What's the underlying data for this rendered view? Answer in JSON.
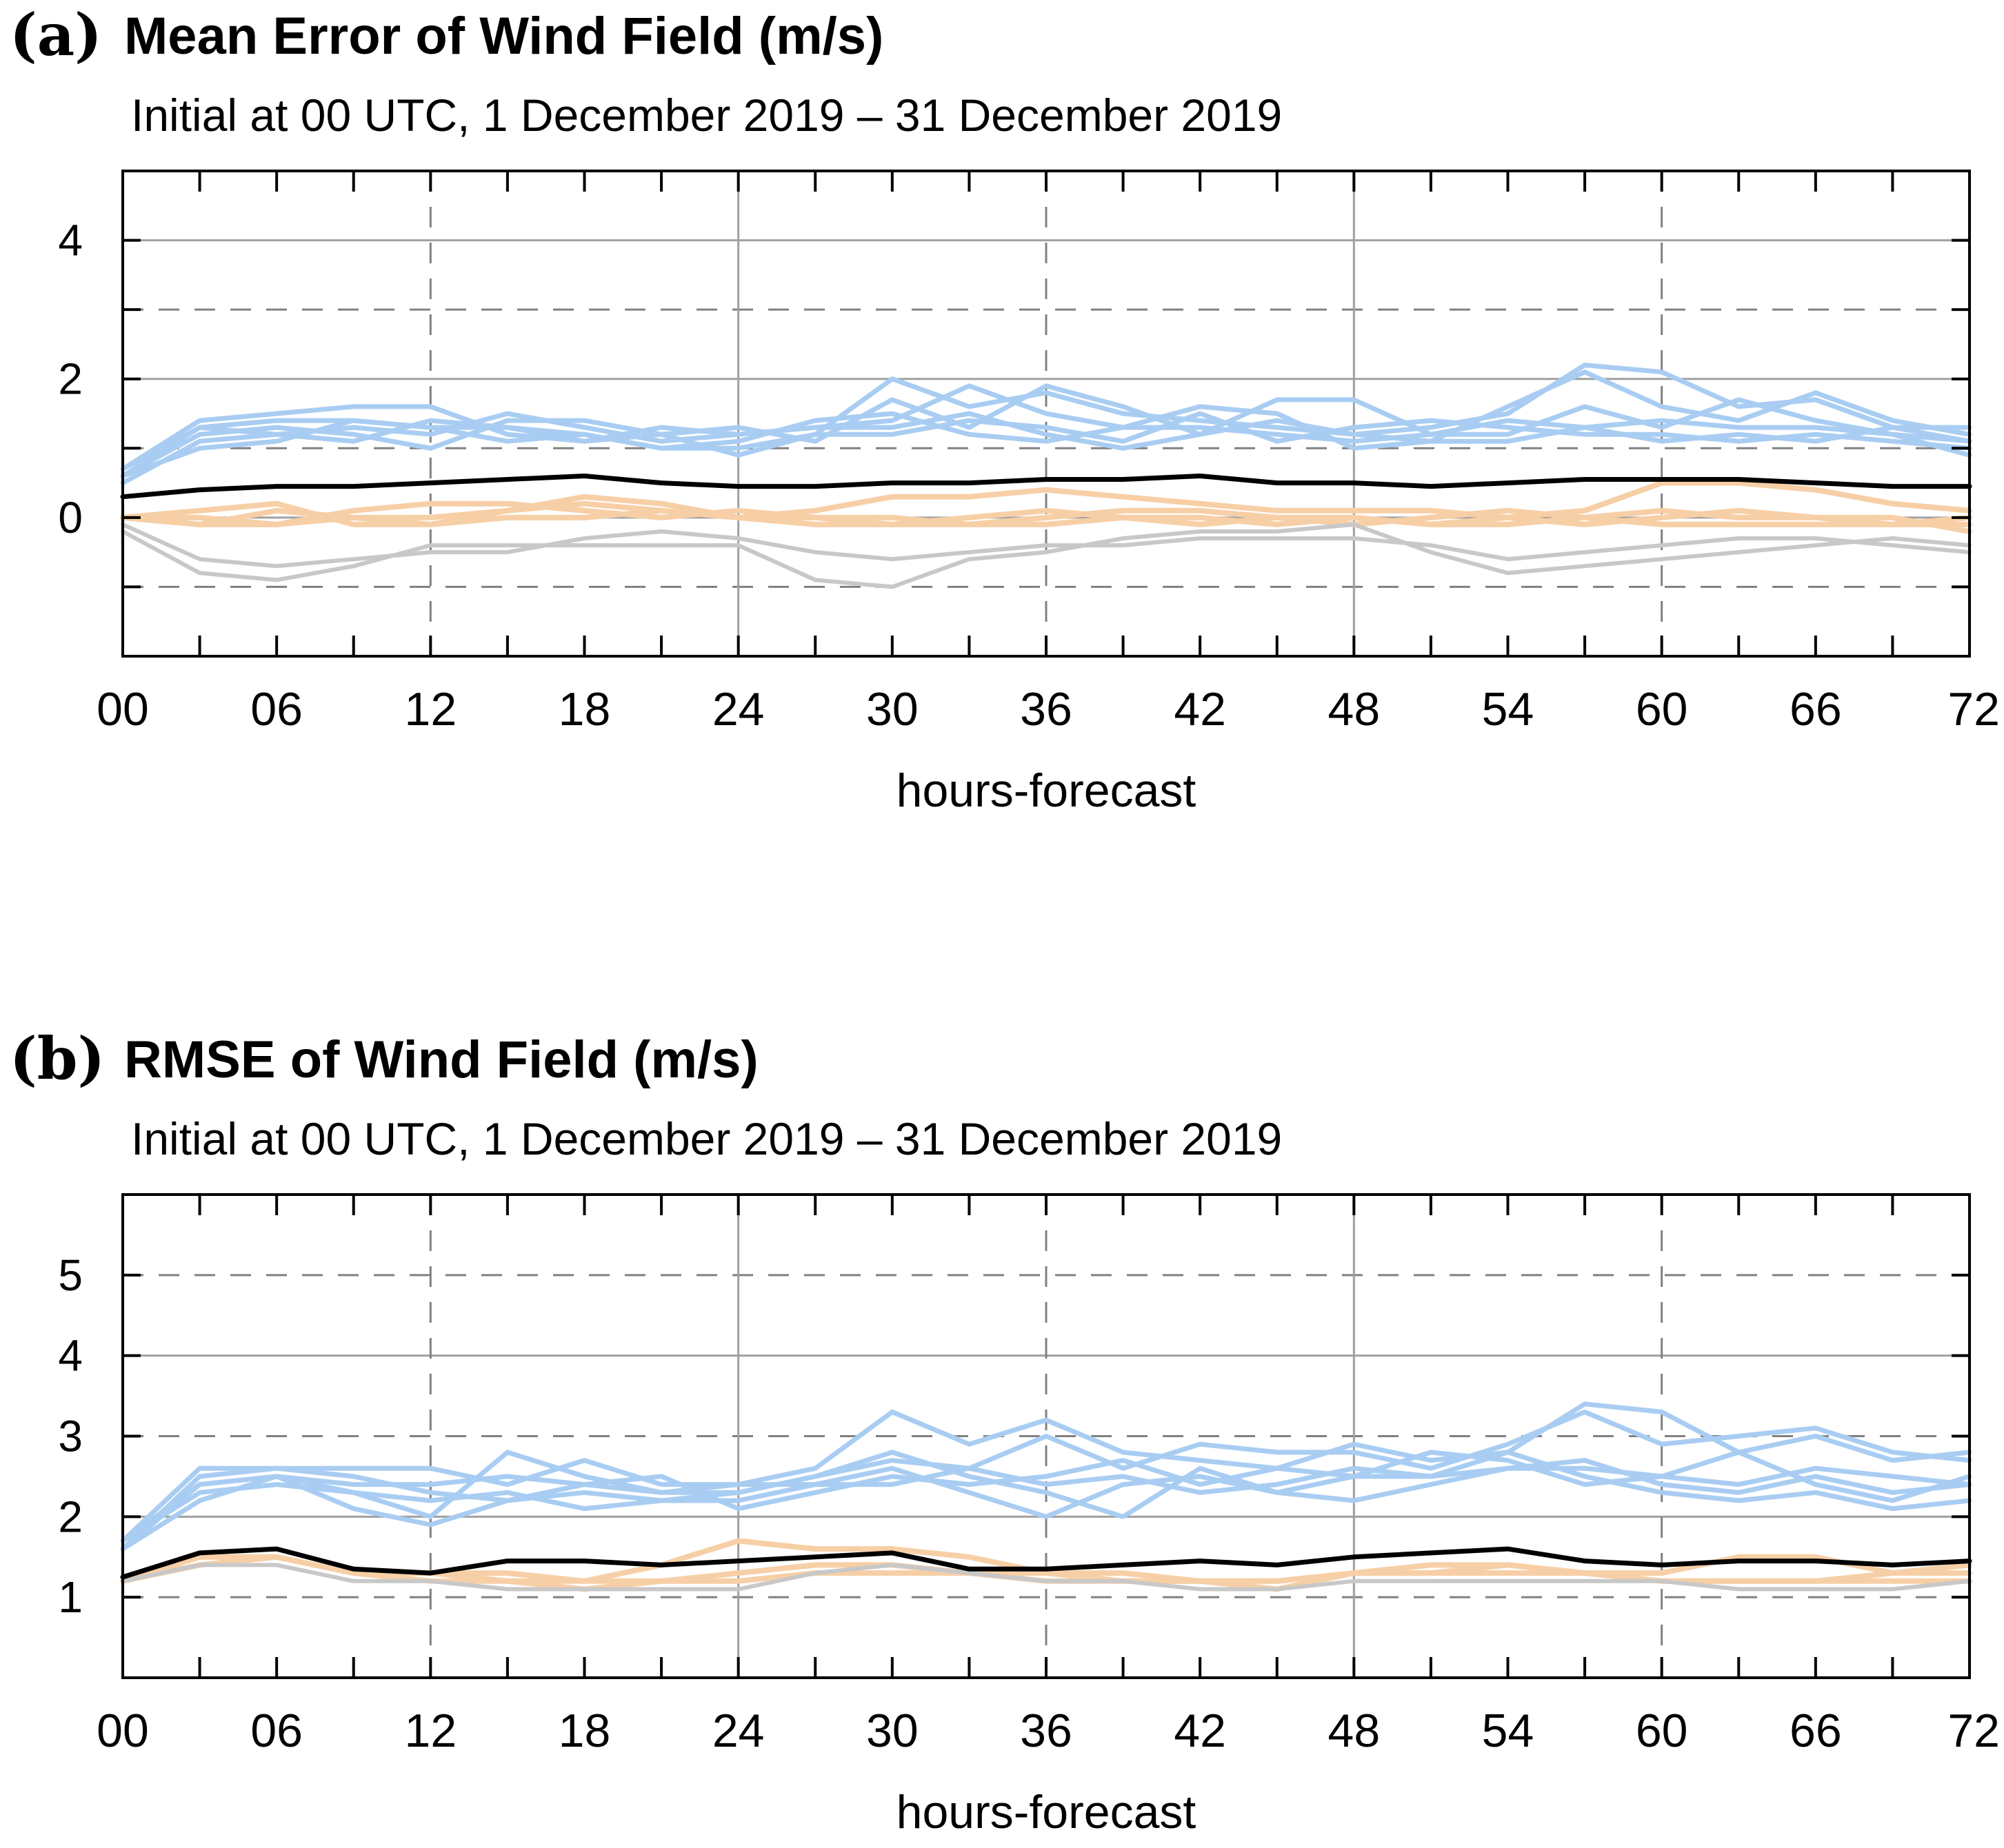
{
  "colors": {
    "blue": "#a9cdf2",
    "orange": "#f7cfa6",
    "gray": "#c8c8c8",
    "black": "#000000",
    "grid_solid": "#a0a0a0",
    "grid_dashed": "#808080"
  },
  "chart_data": [
    {
      "type": "line",
      "panel_label": "(a)",
      "title": "Mean Error of Wind Field (m/s)",
      "subtitle": "Initial at 00 UTC,  1 December 2019 – 31 December 2019",
      "xlabel": "hours-forecast",
      "ylabel": "",
      "x_tick_labels": [
        "00",
        "06",
        "12",
        "18",
        "24",
        "30",
        "36",
        "42",
        "48",
        "54",
        "60",
        "66",
        "72"
      ],
      "y_ticks": [
        0,
        2,
        4
      ],
      "xlim": [
        0,
        72
      ],
      "ylim": [
        -2,
        5
      ],
      "grid": true,
      "x": [
        0,
        3,
        6,
        9,
        12,
        15,
        18,
        21,
        24,
        27,
        30,
        33,
        36,
        39,
        42,
        45,
        48,
        51,
        54,
        57,
        60,
        63,
        66,
        69,
        72
      ],
      "series": [
        {
          "group": "blue",
          "values": [
            0.6,
            1.3,
            1.4,
            1.4,
            1.3,
            1.3,
            1.2,
            1.0,
            1.0,
            1.2,
            2.0,
            1.6,
            1.8,
            1.5,
            1.4,
            1.3,
            1.2,
            1.3,
            1.5,
            2.2,
            2.1,
            1.6,
            1.7,
            1.3,
            1.3
          ]
        },
        {
          "group": "blue",
          "values": [
            0.5,
            1.1,
            1.2,
            1.3,
            1.2,
            1.5,
            1.3,
            1.1,
            1.2,
            1.3,
            1.4,
            1.9,
            1.5,
            1.3,
            1.6,
            1.5,
            1.0,
            1.1,
            1.6,
            2.1,
            1.6,
            1.4,
            1.8,
            1.4,
            1.2
          ]
        },
        {
          "group": "blue",
          "values": [
            0.7,
            1.4,
            1.5,
            1.6,
            1.6,
            1.2,
            1.1,
            1.2,
            1.3,
            1.1,
            1.7,
            1.3,
            1.9,
            1.6,
            1.2,
            1.7,
            1.7,
            1.2,
            1.2,
            1.6,
            1.3,
            1.7,
            1.4,
            1.2,
            1.1
          ]
        },
        {
          "group": "blue",
          "values": [
            0.6,
            1.2,
            1.3,
            1.2,
            1.0,
            1.4,
            1.4,
            1.2,
            0.9,
            1.2,
            1.2,
            1.4,
            1.3,
            1.1,
            1.5,
            1.1,
            1.3,
            1.4,
            1.3,
            1.2,
            1.2,
            1.1,
            1.2,
            1.1,
            1.0
          ]
        },
        {
          "group": "blue",
          "values": [
            0.6,
            1.0,
            1.1,
            1.4,
            1.3,
            1.1,
            1.2,
            1.0,
            1.1,
            1.4,
            1.5,
            1.2,
            1.1,
            1.3,
            1.3,
            1.2,
            1.1,
            1.2,
            1.4,
            1.3,
            1.4,
            1.3,
            1.3,
            1.2,
            0.9
          ]
        },
        {
          "group": "blue",
          "values": [
            0.7,
            1.3,
            1.2,
            1.1,
            1.4,
            1.3,
            1.1,
            1.3,
            1.2,
            1.3,
            1.3,
            1.5,
            1.2,
            1.0,
            1.2,
            1.4,
            1.2,
            1.1,
            1.1,
            1.3,
            1.1,
            1.2,
            1.1,
            1.3,
            1.1
          ]
        },
        {
          "group": "orange",
          "values": [
            0.0,
            -0.1,
            0.1,
            0.0,
            -0.1,
            0.1,
            0.2,
            0.1,
            0.0,
            0.1,
            0.3,
            0.3,
            0.4,
            0.3,
            0.2,
            0.1,
            0.1,
            0.1,
            0.0,
            0.1,
            0.5,
            0.5,
            0.4,
            0.2,
            0.1
          ]
        },
        {
          "group": "orange",
          "values": [
            0.0,
            0.0,
            -0.1,
            0.1,
            0.2,
            0.2,
            0.1,
            0.0,
            0.1,
            0.0,
            0.0,
            -0.1,
            0.0,
            0.1,
            0.1,
            0.0,
            -0.1,
            0.0,
            0.1,
            0.0,
            0.1,
            0.0,
            0.0,
            -0.1,
            0.0
          ]
        },
        {
          "group": "orange",
          "values": [
            0.0,
            0.1,
            0.2,
            -0.1,
            -0.1,
            0.0,
            0.0,
            0.1,
            0.0,
            -0.1,
            -0.1,
            0.0,
            0.1,
            0.0,
            -0.1,
            0.0,
            0.0,
            -0.1,
            0.0,
            -0.1,
            0.0,
            0.1,
            0.0,
            0.0,
            -0.2
          ]
        },
        {
          "group": "orange",
          "values": [
            0.0,
            -0.1,
            -0.1,
            0.0,
            0.0,
            0.1,
            0.3,
            0.2,
            0.0,
            0.0,
            -0.1,
            -0.1,
            -0.1,
            0.0,
            0.0,
            -0.1,
            0.0,
            -0.1,
            -0.1,
            0.0,
            -0.1,
            -0.1,
            -0.1,
            -0.1,
            -0.1
          ]
        },
        {
          "group": "gray",
          "values": [
            -0.2,
            -0.8,
            -0.9,
            -0.7,
            -0.4,
            -0.4,
            -0.4,
            -0.4,
            -0.4,
            -0.9,
            -1.0,
            -0.6,
            -0.5,
            -0.3,
            -0.2,
            -0.2,
            -0.1,
            -0.5,
            -0.8,
            -0.7,
            -0.6,
            -0.5,
            -0.4,
            -0.3,
            -0.4
          ]
        },
        {
          "group": "gray",
          "values": [
            -0.1,
            -0.6,
            -0.7,
            -0.6,
            -0.5,
            -0.5,
            -0.3,
            -0.2,
            -0.3,
            -0.5,
            -0.6,
            -0.5,
            -0.4,
            -0.4,
            -0.3,
            -0.3,
            -0.3,
            -0.4,
            -0.6,
            -0.5,
            -0.4,
            -0.3,
            -0.3,
            -0.4,
            -0.5
          ]
        },
        {
          "group": "black",
          "values": [
            0.3,
            0.4,
            0.45,
            0.45,
            0.5,
            0.55,
            0.6,
            0.5,
            0.45,
            0.45,
            0.5,
            0.5,
            0.55,
            0.55,
            0.6,
            0.5,
            0.5,
            0.45,
            0.5,
            0.55,
            0.55,
            0.55,
            0.5,
            0.45,
            0.45
          ]
        }
      ]
    },
    {
      "type": "line",
      "panel_label": "(b)",
      "title": "RMSE of Wind Field (m/s)",
      "subtitle": "Initial at 00 UTC,  1 December 2019 – 31 December 2019",
      "xlabel": "hours-forecast",
      "ylabel": "",
      "x_tick_labels": [
        "00",
        "06",
        "12",
        "18",
        "24",
        "30",
        "36",
        "42",
        "48",
        "54",
        "60",
        "66",
        "72"
      ],
      "y_ticks": [
        1,
        2,
        3,
        4,
        5
      ],
      "xlim": [
        0,
        72
      ],
      "ylim": [
        0,
        6
      ],
      "grid": true,
      "x": [
        0,
        3,
        6,
        9,
        12,
        15,
        18,
        21,
        24,
        27,
        30,
        33,
        36,
        39,
        42,
        45,
        48,
        51,
        54,
        57,
        60,
        63,
        66,
        69,
        72
      ],
      "series": [
        {
          "group": "blue",
          "values": [
            1.7,
            2.6,
            2.6,
            2.6,
            2.6,
            2.4,
            2.7,
            2.4,
            2.4,
            2.6,
            3.3,
            2.9,
            3.2,
            2.8,
            2.7,
            2.6,
            2.9,
            2.7,
            2.8,
            3.4,
            3.3,
            2.8,
            3.0,
            2.7,
            2.8
          ]
        },
        {
          "group": "blue",
          "values": [
            1.6,
            2.4,
            2.5,
            2.3,
            2.0,
            2.8,
            2.5,
            2.3,
            2.3,
            2.5,
            2.7,
            2.6,
            3.0,
            2.6,
            2.9,
            2.8,
            2.8,
            2.6,
            2.9,
            3.3,
            2.9,
            3.0,
            3.1,
            2.8,
            2.7
          ]
        },
        {
          "group": "blue",
          "values": [
            1.6,
            2.2,
            2.5,
            2.1,
            1.9,
            2.2,
            2.3,
            2.2,
            2.2,
            2.4,
            2.6,
            2.3,
            2.0,
            2.4,
            2.5,
            2.3,
            2.5,
            2.5,
            2.8,
            2.5,
            2.3,
            2.2,
            2.3,
            2.1,
            2.2
          ]
        },
        {
          "group": "blue",
          "values": [
            1.7,
            2.3,
            2.4,
            2.3,
            2.2,
            2.3,
            2.1,
            2.2,
            2.3,
            2.5,
            2.8,
            2.5,
            2.3,
            2.0,
            2.6,
            2.3,
            2.2,
            2.4,
            2.6,
            2.7,
            2.4,
            2.3,
            2.5,
            2.3,
            2.4
          ]
        },
        {
          "group": "blue",
          "values": [
            1.6,
            2.5,
            2.6,
            2.5,
            2.3,
            2.2,
            2.4,
            2.5,
            2.1,
            2.3,
            2.5,
            2.4,
            2.5,
            2.7,
            2.4,
            2.6,
            2.5,
            2.8,
            2.7,
            2.4,
            2.5,
            2.8,
            2.4,
            2.2,
            2.5
          ]
        },
        {
          "group": "blue",
          "values": [
            1.7,
            2.4,
            2.5,
            2.4,
            2.4,
            2.5,
            2.4,
            2.3,
            2.4,
            2.4,
            2.4,
            2.6,
            2.4,
            2.5,
            2.3,
            2.4,
            2.6,
            2.5,
            2.6,
            2.6,
            2.5,
            2.4,
            2.6,
            2.5,
            2.4
          ]
        },
        {
          "group": "orange",
          "values": [
            1.2,
            1.5,
            1.5,
            1.3,
            1.3,
            1.3,
            1.2,
            1.4,
            1.7,
            1.6,
            1.6,
            1.5,
            1.3,
            1.3,
            1.2,
            1.2,
            1.3,
            1.4,
            1.4,
            1.3,
            1.3,
            1.5,
            1.5,
            1.3,
            1.4
          ]
        },
        {
          "group": "orange",
          "values": [
            1.2,
            1.4,
            1.5,
            1.3,
            1.2,
            1.2,
            1.2,
            1.2,
            1.3,
            1.4,
            1.4,
            1.3,
            1.2,
            1.2,
            1.2,
            1.1,
            1.3,
            1.3,
            1.4,
            1.3,
            1.2,
            1.2,
            1.2,
            1.3,
            1.3
          ]
        },
        {
          "group": "orange",
          "values": [
            1.2,
            1.5,
            1.5,
            1.3,
            1.3,
            1.2,
            1.1,
            1.2,
            1.2,
            1.3,
            1.3,
            1.3,
            1.3,
            1.2,
            1.2,
            1.2,
            1.3,
            1.3,
            1.3,
            1.3,
            1.2,
            1.2,
            1.2,
            1.2,
            1.2
          ]
        },
        {
          "group": "gray",
          "values": [
            1.2,
            1.4,
            1.4,
            1.2,
            1.2,
            1.1,
            1.1,
            1.1,
            1.1,
            1.3,
            1.4,
            1.3,
            1.2,
            1.2,
            1.1,
            1.1,
            1.2,
            1.2,
            1.2,
            1.2,
            1.2,
            1.1,
            1.1,
            1.1,
            1.2
          ]
        },
        {
          "group": "black",
          "values": [
            1.25,
            1.55,
            1.6,
            1.35,
            1.3,
            1.45,
            1.45,
            1.4,
            1.45,
            1.5,
            1.55,
            1.35,
            1.35,
            1.4,
            1.45,
            1.4,
            1.5,
            1.55,
            1.6,
            1.45,
            1.4,
            1.45,
            1.45,
            1.4,
            1.45
          ]
        }
      ]
    }
  ]
}
